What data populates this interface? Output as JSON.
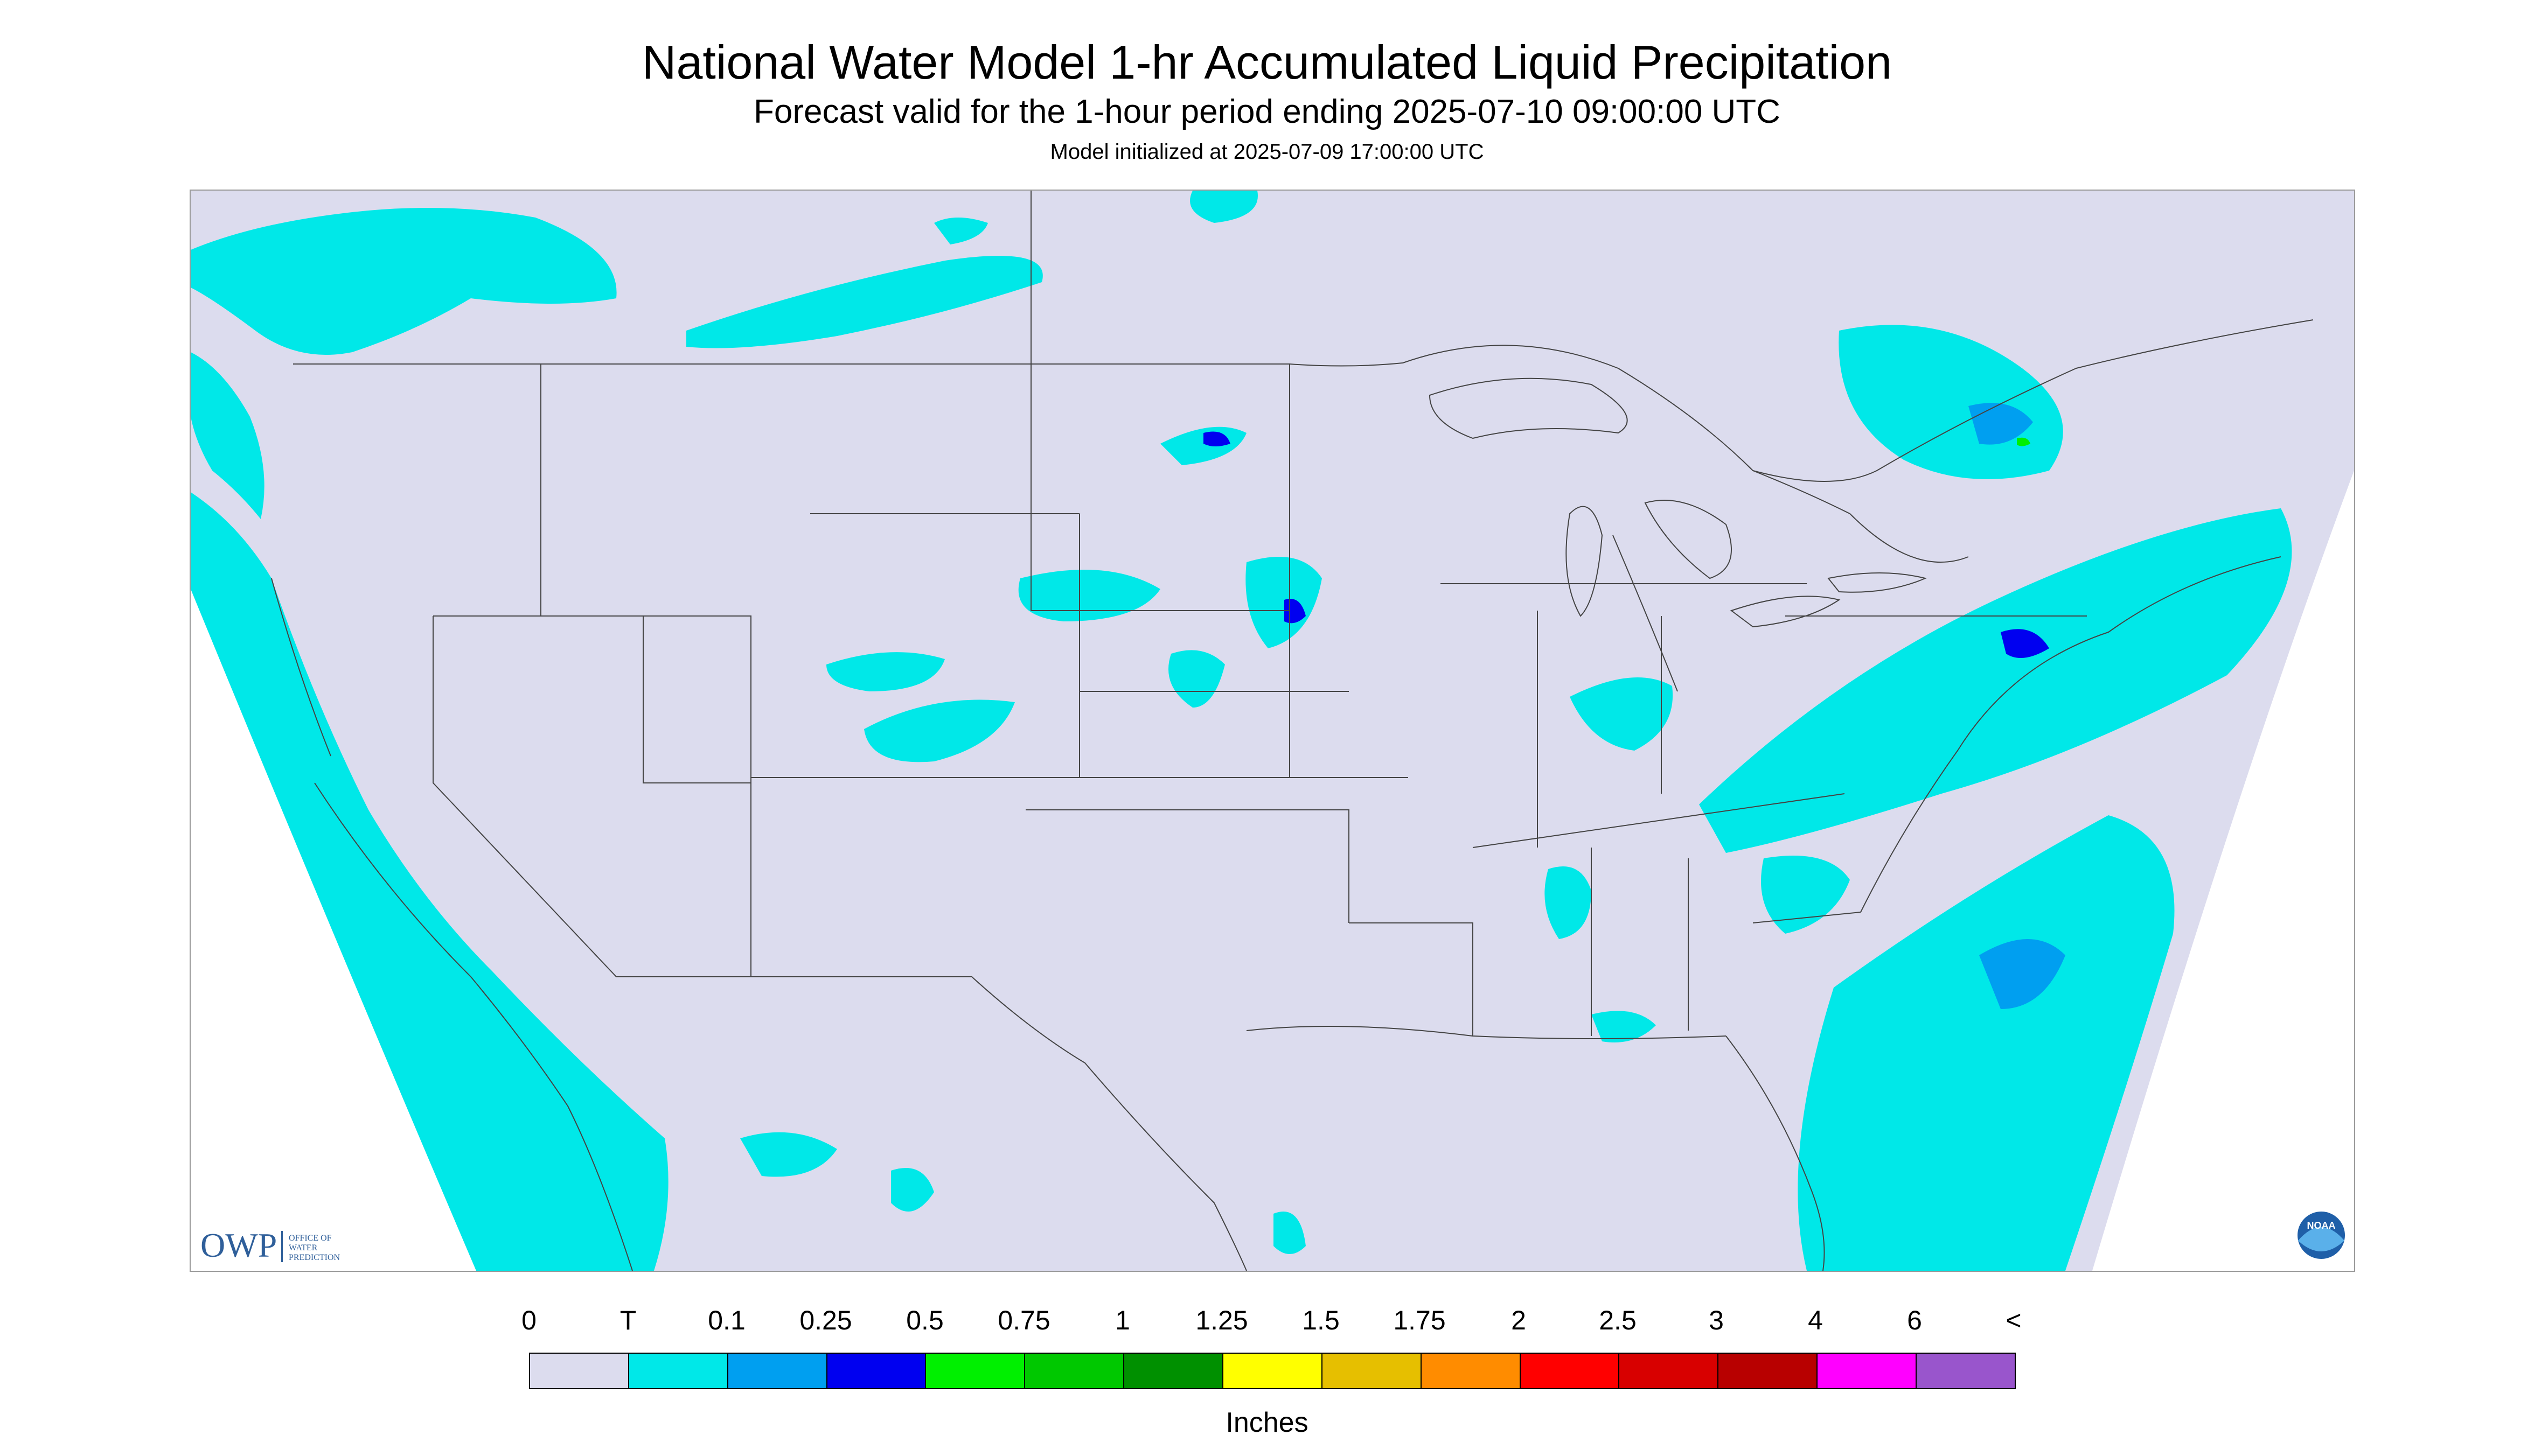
{
  "header": {
    "title": "National Water Model 1-hr Accumulated Liquid Precipitation",
    "subtitle": "Forecast valid for the 1-hour period ending 2025-07-10 09:00:00 UTC",
    "init": "Model initialized at 2025-07-09 17:00:00 UTC"
  },
  "map": {
    "domain_fill": "#dcdcee",
    "outside_fill": "#ffffff",
    "boundary_color": "#444444",
    "precip_colors": {
      "trace": "#00e8e8",
      "p01": "#009ff0",
      "p025": "#0000f0",
      "p05": "#00f000",
      "p075": "#00c800",
      "p1": "#009000"
    },
    "logos": {
      "owp": {
        "mark": "OWP",
        "text_lines": [
          "Office of",
          "Water",
          "Prediction"
        ],
        "icon": "owp-logo"
      },
      "noaa": {
        "icon": "noaa-logo",
        "text": "NOAA"
      }
    }
  },
  "legend": {
    "labels": [
      "0",
      "T",
      "0.1",
      "0.25",
      "0.5",
      "0.75",
      "1",
      "1.25",
      "1.5",
      "1.75",
      "2",
      "2.5",
      "3",
      "4",
      "6",
      "<"
    ],
    "colors": [
      "#dcdcee",
      "#00e8e8",
      "#009ff0",
      "#0000f0",
      "#00f000",
      "#00c800",
      "#009000",
      "#ffff00",
      "#e6bf00",
      "#ff8c00",
      "#ff0000",
      "#d80000",
      "#b80000",
      "#ff00ff",
      "#9955cc"
    ],
    "units": "Inches"
  }
}
